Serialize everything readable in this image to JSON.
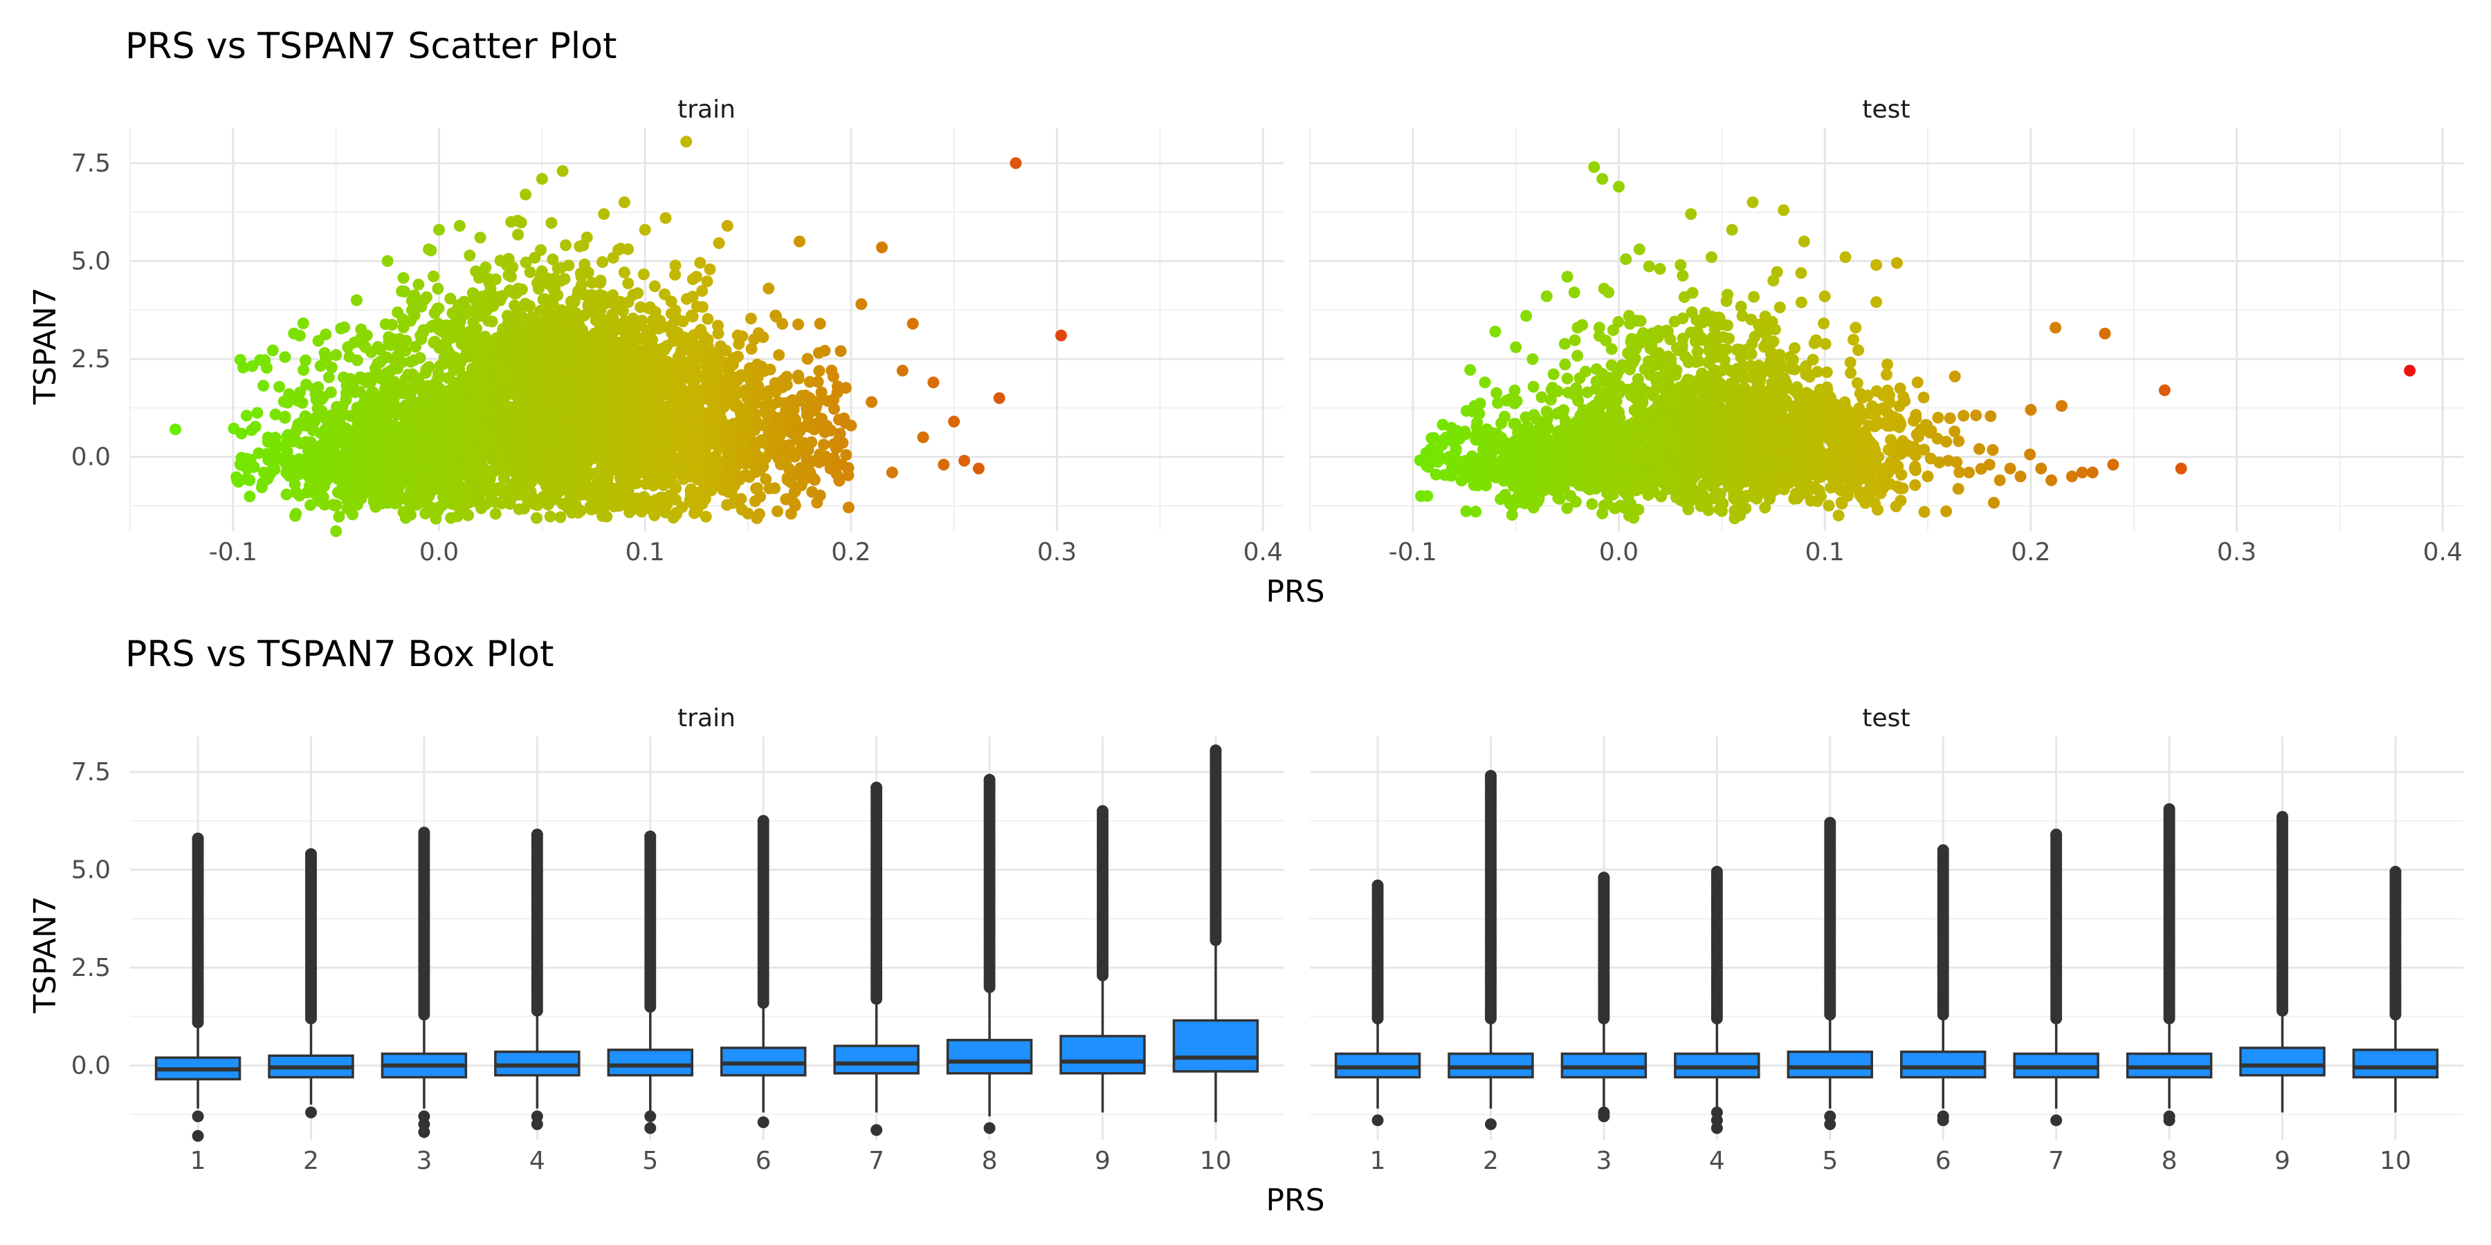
{
  "chart_data": [
    {
      "type": "scatter",
      "title": "PRS vs TSPAN7 Scatter Plot",
      "xlabel": "PRS",
      "ylabel": "TSPAN7",
      "xlim": [
        -0.15,
        0.41
      ],
      "ylim": [
        -1.9,
        8.4
      ],
      "x_ticks": [
        -0.1,
        0.0,
        0.1,
        0.2,
        0.3,
        0.4
      ],
      "x_tick_labels": [
        "-0.1",
        "0.0",
        "0.1",
        "0.2",
        "0.3",
        "0.4"
      ],
      "y_ticks": [
        0.0,
        2.5,
        5.0,
        7.5
      ],
      "y_tick_labels": [
        "0.0",
        "2.5",
        "5.0",
        "7.5"
      ],
      "color_scale": {
        "low": "#66ee00",
        "mid": "#c8b400",
        "high": "#ee1111",
        "domain": [
          -0.13,
          0.385
        ]
      },
      "grid": true,
      "legend": "none",
      "facets": [
        "train",
        "test"
      ],
      "series": [
        {
          "facet": "train",
          "points": [
            [
              -0.128,
              0.7
            ],
            [
              -0.098,
              -0.6
            ],
            [
              -0.092,
              -0.6
            ],
            [
              -0.085,
              -0.4
            ],
            [
              -0.08,
              -0.1
            ],
            [
              -0.075,
              0.3
            ],
            [
              -0.07,
              -0.7
            ],
            [
              -0.065,
              0.8
            ],
            [
              -0.06,
              1.6
            ],
            [
              -0.055,
              -0.2
            ],
            [
              -0.05,
              -1.9
            ],
            [
              -0.05,
              2.6
            ],
            [
              -0.045,
              0.4
            ],
            [
              -0.04,
              4.0
            ],
            [
              -0.035,
              3.1
            ],
            [
              -0.03,
              1.0
            ],
            [
              -0.025,
              5.0
            ],
            [
              -0.02,
              -0.9
            ],
            [
              -0.015,
              2.1
            ],
            [
              -0.01,
              4.4
            ],
            [
              -0.005,
              5.3
            ],
            [
              0.0,
              5.8
            ],
            [
              0.0,
              0.5
            ],
            [
              0.005,
              3.2
            ],
            [
              0.01,
              5.9
            ],
            [
              0.012,
              -1.3
            ],
            [
              0.015,
              1.6
            ],
            [
              0.02,
              5.6
            ],
            [
              0.025,
              4.3
            ],
            [
              0.03,
              0.7
            ],
            [
              0.035,
              6.0
            ],
            [
              0.04,
              2.4
            ],
            [
              0.042,
              6.7
            ],
            [
              0.045,
              -1.1
            ],
            [
              0.05,
              7.1
            ],
            [
              0.055,
              3.6
            ],
            [
              0.06,
              7.3
            ],
            [
              0.065,
              1.2
            ],
            [
              0.07,
              5.4
            ],
            [
              0.075,
              -0.9
            ],
            [
              0.08,
              6.2
            ],
            [
              0.085,
              2.9
            ],
            [
              0.09,
              6.5
            ],
            [
              0.095,
              0.4
            ],
            [
              0.1,
              5.8
            ],
            [
              0.105,
              3.7
            ],
            [
              0.11,
              6.1
            ],
            [
              0.115,
              -0.8
            ],
            [
              0.12,
              8.05
            ],
            [
              0.125,
              4.6
            ],
            [
              0.13,
              2.3
            ],
            [
              0.135,
              0.9
            ],
            [
              0.14,
              5.9
            ],
            [
              0.145,
              3.1
            ],
            [
              0.15,
              -1.45
            ],
            [
              0.155,
              1.8
            ],
            [
              0.16,
              4.3
            ],
            [
              0.165,
              2.6
            ],
            [
              0.17,
              0.3
            ],
            [
              0.175,
              5.5
            ],
            [
              0.18,
              1.5
            ],
            [
              0.185,
              3.4
            ],
            [
              0.19,
              -0.3
            ],
            [
              0.195,
              2.7
            ],
            [
              0.2,
              0.8
            ],
            [
              0.205,
              3.9
            ],
            [
              0.21,
              1.4
            ],
            [
              0.215,
              5.35
            ],
            [
              0.22,
              -0.4
            ],
            [
              0.225,
              2.2
            ],
            [
              0.23,
              3.4
            ],
            [
              0.235,
              0.5
            ],
            [
              0.24,
              1.9
            ],
            [
              0.245,
              -0.2
            ],
            [
              0.25,
              0.9
            ],
            [
              0.255,
              -0.1
            ],
            [
              0.262,
              -0.3
            ],
            [
              0.272,
              1.5
            ],
            [
              0.28,
              7.5
            ],
            [
              0.302,
              3.1
            ]
          ]
        },
        {
          "facet": "test",
          "points": [
            [
              -0.093,
              -1.0
            ],
            [
              -0.088,
              0.1
            ],
            [
              -0.08,
              0.6
            ],
            [
              -0.075,
              -0.4
            ],
            [
              -0.07,
              1.3
            ],
            [
              -0.065,
              1.9
            ],
            [
              -0.06,
              3.2
            ],
            [
              -0.055,
              0.2
            ],
            [
              -0.05,
              2.8
            ],
            [
              -0.045,
              3.6
            ],
            [
              -0.04,
              -0.6
            ],
            [
              -0.035,
              4.1
            ],
            [
              -0.03,
              1.1
            ],
            [
              -0.025,
              4.6
            ],
            [
              -0.02,
              3.3
            ],
            [
              -0.015,
              -0.8
            ],
            [
              -0.012,
              7.4
            ],
            [
              -0.008,
              7.1
            ],
            [
              0.0,
              6.9
            ],
            [
              -0.005,
              4.2
            ],
            [
              0.0,
              2.2
            ],
            [
              0.005,
              -1.5
            ],
            [
              0.01,
              5.3
            ],
            [
              0.015,
              0.9
            ],
            [
              0.02,
              4.8
            ],
            [
              0.025,
              3.0
            ],
            [
              0.03,
              4.9
            ],
            [
              0.035,
              6.2
            ],
            [
              0.04,
              -1.1
            ],
            [
              0.045,
              5.1
            ],
            [
              0.05,
              2.2
            ],
            [
              0.055,
              5.8
            ],
            [
              0.06,
              3.6
            ],
            [
              0.065,
              6.5
            ],
            [
              0.07,
              -0.6
            ],
            [
              0.075,
              4.5
            ],
            [
              0.08,
              6.3
            ],
            [
              0.085,
              1.7
            ],
            [
              0.09,
              5.5
            ],
            [
              0.095,
              2.9
            ],
            [
              0.1,
              4.1
            ],
            [
              0.105,
              0.6
            ],
            [
              0.11,
              5.1
            ],
            [
              0.115,
              3.3
            ],
            [
              0.12,
              -0.9
            ],
            [
              0.125,
              4.9
            ],
            [
              0.13,
              2.1
            ],
            [
              0.135,
              4.95
            ],
            [
              0.14,
              0.3
            ],
            [
              0.145,
              1.9
            ],
            [
              0.15,
              -0.5
            ],
            [
              0.155,
              1.0
            ],
            [
              0.16,
              -0.1
            ],
            [
              0.165,
              0.4
            ],
            [
              0.17,
              -0.4
            ],
            [
              0.175,
              0.2
            ],
            [
              0.18,
              -0.2
            ],
            [
              0.185,
              -0.6
            ],
            [
              0.19,
              -0.3
            ],
            [
              0.195,
              -0.5
            ],
            [
              0.2,
              1.2
            ],
            [
              0.205,
              -0.3
            ],
            [
              0.21,
              -0.6
            ],
            [
              0.212,
              3.3
            ],
            [
              0.215,
              1.3
            ],
            [
              0.22,
              -0.5
            ],
            [
              0.225,
              -0.4
            ],
            [
              0.23,
              -0.4
            ],
            [
              0.236,
              3.15
            ],
            [
              0.24,
              -0.2
            ],
            [
              0.265,
              1.7
            ],
            [
              0.273,
              -0.3
            ],
            [
              0.384,
              2.2
            ]
          ]
        }
      ],
      "density_clouds": [
        {
          "facet": "train",
          "blobs": [
            {
              "cx": 0.045,
              "cy": 1.0,
              "sx": 0.055,
              "sy": 1.3,
              "n": 2200
            },
            {
              "cx": -0.02,
              "cy": -0.2,
              "sx": 0.035,
              "sy": 0.5,
              "n": 700
            },
            {
              "cx": 0.1,
              "cy": 0.6,
              "sx": 0.04,
              "sy": 1.0,
              "n": 700
            },
            {
              "cx": 0.06,
              "cy": 3.0,
              "sx": 0.035,
              "sy": 1.1,
              "n": 500
            },
            {
              "cx": 0.16,
              "cy": 0.4,
              "sx": 0.035,
              "sy": 0.9,
              "n": 280
            }
          ]
        },
        {
          "facet": "test",
          "blobs": [
            {
              "cx": 0.04,
              "cy": 0.4,
              "sx": 0.045,
              "sy": 0.9,
              "n": 1200
            },
            {
              "cx": -0.03,
              "cy": -0.1,
              "sx": 0.03,
              "sy": 0.5,
              "n": 450
            },
            {
              "cx": 0.09,
              "cy": 0.3,
              "sx": 0.035,
              "sy": 0.7,
              "n": 450
            },
            {
              "cx": 0.04,
              "cy": 2.2,
              "sx": 0.03,
              "sy": 0.9,
              "n": 300
            }
          ]
        }
      ]
    },
    {
      "type": "box",
      "title": "PRS vs TSPAN7 Box Plot",
      "xlabel": "PRS",
      "ylabel": "TSPAN7",
      "categories": [
        "1",
        "2",
        "3",
        "4",
        "5",
        "6",
        "7",
        "8",
        "9",
        "10"
      ],
      "ylim": [
        -1.9,
        8.4
      ],
      "y_ticks": [
        0.0,
        2.5,
        5.0,
        7.5
      ],
      "y_tick_labels": [
        "0.0",
        "2.5",
        "5.0",
        "7.5"
      ],
      "box_fill": "#1e90ff",
      "box_stroke": "#333333",
      "grid": true,
      "legend": "none",
      "facets": [
        {
          "name": "train",
          "boxes": [
            {
              "q1": -0.35,
              "median": -0.1,
              "q3": 0.2,
              "wlo": -1.1,
              "whi": 1.0,
              "out_hi": 5.8,
              "out_lo": [
                -1.3,
                -1.8
              ]
            },
            {
              "q1": -0.3,
              "median": -0.05,
              "q3": 0.25,
              "wlo": -1.0,
              "whi": 1.1,
              "out_hi": 5.4,
              "out_lo": [
                -1.2
              ]
            },
            {
              "q1": -0.3,
              "median": 0.0,
              "q3": 0.3,
              "wlo": -1.1,
              "whi": 1.2,
              "out_hi": 5.95,
              "out_lo": [
                -1.3,
                -1.5,
                -1.7
              ]
            },
            {
              "q1": -0.25,
              "median": 0.0,
              "q3": 0.35,
              "wlo": -1.1,
              "whi": 1.3,
              "out_hi": 5.9,
              "out_lo": [
                -1.3,
                -1.5
              ]
            },
            {
              "q1": -0.25,
              "median": 0.0,
              "q3": 0.4,
              "wlo": -1.2,
              "whi": 1.4,
              "out_hi": 5.85,
              "out_lo": [
                -1.3,
                -1.6
              ]
            },
            {
              "q1": -0.25,
              "median": 0.05,
              "q3": 0.45,
              "wlo": -1.2,
              "whi": 1.5,
              "out_hi": 6.25,
              "out_lo": [
                -1.45
              ]
            },
            {
              "q1": -0.2,
              "median": 0.05,
              "q3": 0.5,
              "wlo": -1.2,
              "whi": 1.6,
              "out_hi": 7.1,
              "out_lo": [
                -1.65
              ]
            },
            {
              "q1": -0.2,
              "median": 0.1,
              "q3": 0.65,
              "wlo": -1.3,
              "whi": 1.9,
              "out_hi": 7.3,
              "out_lo": [
                -1.6
              ]
            },
            {
              "q1": -0.2,
              "median": 0.1,
              "q3": 0.75,
              "wlo": -1.2,
              "whi": 2.2,
              "out_hi": 6.5,
              "out_lo": []
            },
            {
              "q1": -0.15,
              "median": 0.2,
              "q3": 1.15,
              "wlo": -1.45,
              "whi": 3.1,
              "out_hi": 8.05,
              "out_lo": []
            }
          ]
        },
        {
          "name": "test",
          "boxes": [
            {
              "q1": -0.3,
              "median": -0.05,
              "q3": 0.3,
              "wlo": -1.1,
              "whi": 1.1,
              "out_hi": 4.6,
              "out_lo": [
                -1.4
              ]
            },
            {
              "q1": -0.3,
              "median": -0.05,
              "q3": 0.3,
              "wlo": -1.1,
              "whi": 1.1,
              "out_hi": 7.4,
              "out_lo": [
                -1.5
              ]
            },
            {
              "q1": -0.3,
              "median": -0.05,
              "q3": 0.3,
              "wlo": -1.1,
              "whi": 1.1,
              "out_hi": 4.8,
              "out_lo": [
                -1.2,
                -1.3
              ]
            },
            {
              "q1": -0.3,
              "median": -0.05,
              "q3": 0.3,
              "wlo": -1.1,
              "whi": 1.1,
              "out_hi": 4.95,
              "out_lo": [
                -1.2,
                -1.4,
                -1.6
              ]
            },
            {
              "q1": -0.3,
              "median": -0.05,
              "q3": 0.35,
              "wlo": -1.1,
              "whi": 1.2,
              "out_hi": 6.2,
              "out_lo": [
                -1.3,
                -1.5
              ]
            },
            {
              "q1": -0.3,
              "median": -0.05,
              "q3": 0.35,
              "wlo": -1.1,
              "whi": 1.2,
              "out_hi": 5.5,
              "out_lo": [
                -1.3,
                -1.4
              ]
            },
            {
              "q1": -0.3,
              "median": -0.05,
              "q3": 0.3,
              "wlo": -1.1,
              "whi": 1.1,
              "out_hi": 5.9,
              "out_lo": [
                -1.4
              ]
            },
            {
              "q1": -0.3,
              "median": -0.05,
              "q3": 0.3,
              "wlo": -1.1,
              "whi": 1.1,
              "out_hi": 6.55,
              "out_lo": [
                -1.3,
                -1.4
              ]
            },
            {
              "q1": -0.25,
              "median": 0.0,
              "q3": 0.45,
              "wlo": -1.2,
              "whi": 1.3,
              "out_hi": 6.35,
              "out_lo": []
            },
            {
              "q1": -0.3,
              "median": -0.05,
              "q3": 0.4,
              "wlo": -1.2,
              "whi": 1.2,
              "out_hi": 4.95,
              "out_lo": []
            }
          ]
        }
      ]
    }
  ]
}
